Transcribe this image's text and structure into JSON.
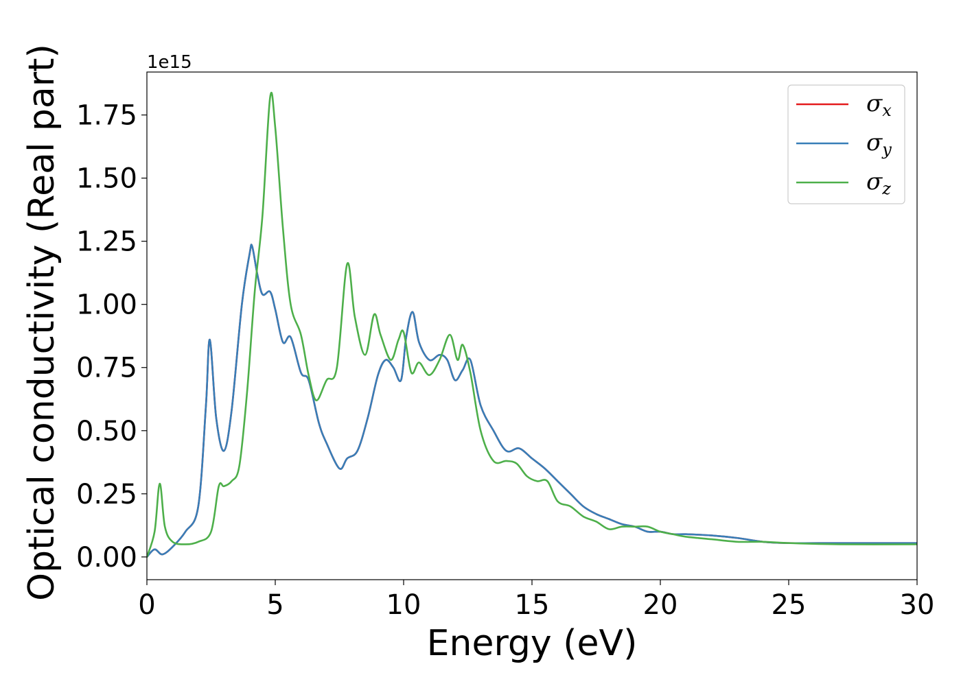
{
  "chart_data": {
    "type": "line",
    "xlabel": "Energy (eV)",
    "ylabel": "Optical conductivity (Real part)",
    "y_offset_text": "1e15",
    "xlim": [
      0,
      30
    ],
    "ylim": [
      -0.09,
      1.92
    ],
    "y_scale_factor": 1000000000000000.0,
    "xticks": [
      0,
      5,
      10,
      15,
      20,
      25,
      30
    ],
    "xtick_labels": [
      "0",
      "5",
      "10",
      "15",
      "20",
      "25",
      "30"
    ],
    "yticks": [
      0.0,
      0.25,
      0.5,
      0.75,
      1.0,
      1.25,
      1.5,
      1.75
    ],
    "ytick_labels": [
      "0.00",
      "0.25",
      "0.50",
      "0.75",
      "1.00",
      "1.25",
      "1.50",
      "1.75"
    ],
    "grid": false,
    "legend_position": "top-right",
    "series": [
      {
        "name": "σx",
        "legend_base": "σ",
        "legend_sub": "x",
        "color": "#e41a1c",
        "x": [
          0,
          0.3,
          0.6,
          1.0,
          1.5,
          2.0,
          2.3,
          2.45,
          2.7,
          3.0,
          3.3,
          3.7,
          4.0,
          4.1,
          4.3,
          4.5,
          4.8,
          5.0,
          5.3,
          5.6,
          6.0,
          6.3,
          6.7,
          7.0,
          7.5,
          7.8,
          8.2,
          8.6,
          9.0,
          9.3,
          9.6,
          9.9,
          10.1,
          10.35,
          10.6,
          11.0,
          11.4,
          11.7,
          12.0,
          12.3,
          12.6,
          13.0,
          13.5,
          14.0,
          14.5,
          15.0,
          15.5,
          16.0,
          16.5,
          17.0,
          17.5,
          18.0,
          18.5,
          19.0,
          19.5,
          20.0,
          20.5,
          21.0,
          22.0,
          23.0,
          24.0,
          25.0,
          27.0,
          30.0
        ],
        "y": [
          0,
          0.03,
          0.01,
          0.04,
          0.1,
          0.2,
          0.6,
          0.86,
          0.55,
          0.42,
          0.58,
          1.0,
          1.2,
          1.23,
          1.12,
          1.04,
          1.05,
          0.98,
          0.85,
          0.87,
          0.73,
          0.7,
          0.53,
          0.45,
          0.35,
          0.39,
          0.42,
          0.55,
          0.72,
          0.78,
          0.75,
          0.7,
          0.87,
          0.97,
          0.85,
          0.78,
          0.8,
          0.78,
          0.7,
          0.74,
          0.78,
          0.6,
          0.5,
          0.42,
          0.43,
          0.39,
          0.35,
          0.3,
          0.25,
          0.2,
          0.17,
          0.15,
          0.13,
          0.12,
          0.1,
          0.1,
          0.09,
          0.09,
          0.085,
          0.075,
          0.06,
          0.055,
          0.055,
          0.055
        ]
      },
      {
        "name": "σy",
        "legend_base": "σ",
        "legend_sub": "y",
        "color": "#377eb8",
        "x": [
          0,
          0.3,
          0.6,
          1.0,
          1.5,
          2.0,
          2.3,
          2.45,
          2.7,
          3.0,
          3.3,
          3.7,
          4.0,
          4.1,
          4.3,
          4.5,
          4.8,
          5.0,
          5.3,
          5.6,
          6.0,
          6.3,
          6.7,
          7.0,
          7.5,
          7.8,
          8.2,
          8.6,
          9.0,
          9.3,
          9.6,
          9.9,
          10.1,
          10.35,
          10.6,
          11.0,
          11.4,
          11.7,
          12.0,
          12.3,
          12.6,
          13.0,
          13.5,
          14.0,
          14.5,
          15.0,
          15.5,
          16.0,
          16.5,
          17.0,
          17.5,
          18.0,
          18.5,
          19.0,
          19.5,
          20.0,
          20.5,
          21.0,
          22.0,
          23.0,
          24.0,
          25.0,
          27.0,
          30.0
        ],
        "y": [
          0,
          0.03,
          0.01,
          0.04,
          0.1,
          0.2,
          0.6,
          0.86,
          0.55,
          0.42,
          0.58,
          1.0,
          1.2,
          1.23,
          1.12,
          1.04,
          1.05,
          0.98,
          0.85,
          0.87,
          0.73,
          0.7,
          0.53,
          0.45,
          0.35,
          0.39,
          0.42,
          0.55,
          0.72,
          0.78,
          0.75,
          0.7,
          0.87,
          0.97,
          0.85,
          0.78,
          0.8,
          0.78,
          0.7,
          0.74,
          0.78,
          0.6,
          0.5,
          0.42,
          0.43,
          0.39,
          0.35,
          0.3,
          0.25,
          0.2,
          0.17,
          0.15,
          0.13,
          0.12,
          0.1,
          0.1,
          0.09,
          0.09,
          0.085,
          0.075,
          0.06,
          0.055,
          0.055,
          0.055
        ]
      },
      {
        "name": "σz",
        "legend_base": "σ",
        "legend_sub": "z",
        "color": "#4daf4a",
        "x": [
          0,
          0.3,
          0.5,
          0.7,
          1.0,
          1.5,
          2.0,
          2.5,
          2.8,
          3.0,
          3.3,
          3.6,
          3.9,
          4.2,
          4.5,
          4.8,
          5.0,
          5.3,
          5.6,
          6.0,
          6.3,
          6.6,
          7.0,
          7.4,
          7.8,
          8.1,
          8.5,
          8.85,
          9.1,
          9.5,
          9.8,
          10.0,
          10.3,
          10.6,
          11.0,
          11.4,
          11.8,
          12.1,
          12.3,
          12.6,
          13.0,
          13.5,
          14.0,
          14.4,
          14.8,
          15.2,
          15.6,
          16.0,
          16.5,
          17.0,
          17.5,
          18.0,
          18.5,
          19.0,
          19.5,
          20.0,
          20.5,
          21.0,
          22.0,
          23.0,
          24.0,
          25.0,
          27.0,
          30.0
        ],
        "y": [
          0,
          0.1,
          0.29,
          0.12,
          0.06,
          0.05,
          0.06,
          0.1,
          0.28,
          0.28,
          0.3,
          0.36,
          0.65,
          1.05,
          1.35,
          1.82,
          1.7,
          1.3,
          1.0,
          0.88,
          0.72,
          0.62,
          0.7,
          0.75,
          1.16,
          0.95,
          0.8,
          0.96,
          0.88,
          0.78,
          0.86,
          0.89,
          0.73,
          0.77,
          0.72,
          0.78,
          0.88,
          0.78,
          0.84,
          0.73,
          0.5,
          0.38,
          0.38,
          0.37,
          0.32,
          0.3,
          0.3,
          0.22,
          0.2,
          0.16,
          0.14,
          0.11,
          0.12,
          0.12,
          0.12,
          0.1,
          0.09,
          0.08,
          0.07,
          0.06,
          0.06,
          0.055,
          0.05,
          0.05
        ]
      }
    ]
  }
}
